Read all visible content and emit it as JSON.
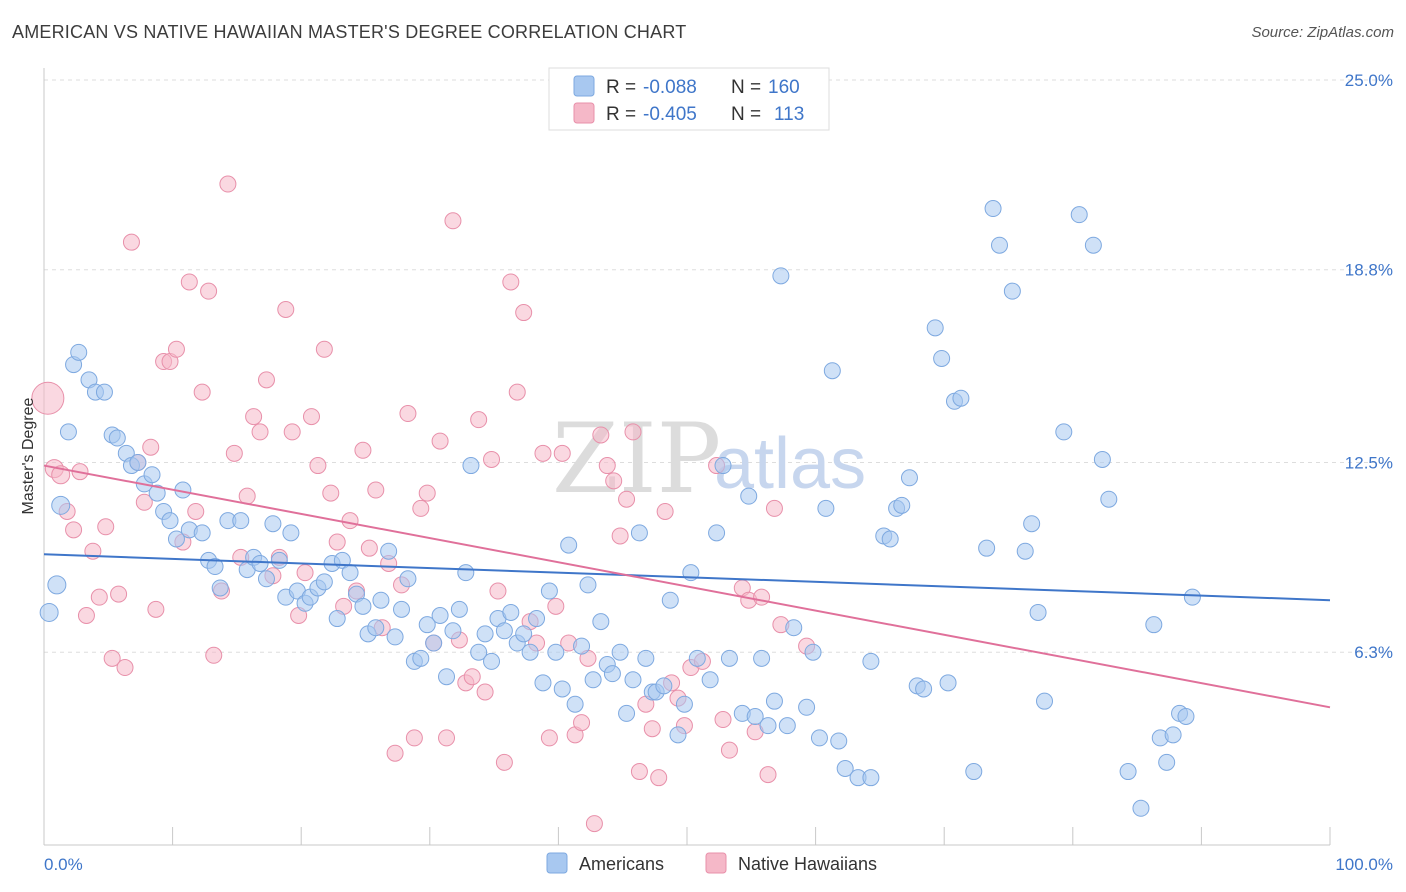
{
  "header": {
    "title": "AMERICAN VS NATIVE HAWAIIAN MASTER'S DEGREE CORRELATION CHART",
    "source": "Source: ZipAtlas.com"
  },
  "watermark": {
    "zip": "ZIP",
    "atlas": "atlas"
  },
  "legend": {
    "rows": [
      {
        "r_label": "R =",
        "r_value": "-0.088",
        "n_label": "N =",
        "n_value": "160",
        "color": "#a8c8f0"
      },
      {
        "r_label": "R =",
        "r_value": "-0.405",
        "n_label": "N =",
        "n_value": "113",
        "color": "#f5b8c8"
      }
    ]
  },
  "bottom_legend": {
    "items": [
      {
        "label": "Americans",
        "color": "#a8c8f0"
      },
      {
        "label": "Native Hawaiians",
        "color": "#f5b8c8"
      }
    ]
  },
  "chart_data": {
    "type": "scatter",
    "title": "AMERICAN VS NATIVE HAWAIIAN MASTER'S DEGREE CORRELATION CHART",
    "xlabel": "",
    "ylabel": "Master's Degree",
    "xlim": [
      0,
      100
    ],
    "ylim": [
      0,
      25
    ],
    "x_tick_labels": [
      "0.0%",
      "100.0%"
    ],
    "y_ticks": [
      6.3,
      12.5,
      18.8,
      25.0
    ],
    "y_tick_labels": [
      "6.3%",
      "12.5%",
      "18.8%",
      "25.0%"
    ],
    "grid": "horizontal dashed",
    "legend_position": "top-center",
    "colors": {
      "americans": "#3f76c9",
      "americans_fill": "#a8c8f0",
      "hawaiians": "#e0709a",
      "hawaiians_fill": "#f5b8c8"
    },
    "series": [
      {
        "name": "Americans",
        "trend": {
          "x": [
            0,
            100
          ],
          "y": [
            9.5,
            8.0
          ]
        },
        "points": [
          [
            0.4,
            7.6
          ],
          [
            1,
            8.5
          ],
          [
            1.3,
            11.1
          ],
          [
            1.9,
            13.5
          ],
          [
            2.3,
            15.7
          ],
          [
            2.7,
            16.1
          ],
          [
            3.5,
            15.2
          ],
          [
            4,
            14.8
          ],
          [
            4.7,
            14.8
          ],
          [
            5.3,
            13.4
          ],
          [
            5.7,
            13.3
          ],
          [
            6.4,
            12.8
          ],
          [
            6.8,
            12.4
          ],
          [
            7.3,
            12.5
          ],
          [
            7.8,
            11.8
          ],
          [
            8.4,
            12.1
          ],
          [
            8.8,
            11.5
          ],
          [
            9.3,
            10.9
          ],
          [
            9.8,
            10.6
          ],
          [
            10.3,
            10.0
          ],
          [
            10.8,
            11.6
          ],
          [
            11.3,
            10.3
          ],
          [
            12.3,
            10.2
          ],
          [
            12.8,
            9.3
          ],
          [
            13.3,
            9.1
          ],
          [
            13.7,
            8.4
          ],
          [
            14.3,
            10.6
          ],
          [
            15.3,
            10.6
          ],
          [
            15.8,
            9.0
          ],
          [
            16.3,
            9.4
          ],
          [
            16.8,
            9.2
          ],
          [
            17.3,
            8.7
          ],
          [
            17.8,
            10.5
          ],
          [
            18.3,
            9.3
          ],
          [
            18.8,
            8.1
          ],
          [
            19.2,
            10.2
          ],
          [
            19.7,
            8.3
          ],
          [
            20.3,
            7.9
          ],
          [
            20.7,
            8.1
          ],
          [
            21.3,
            8.4
          ],
          [
            21.8,
            8.6
          ],
          [
            22.4,
            9.2
          ],
          [
            22.8,
            7.4
          ],
          [
            23.2,
            9.3
          ],
          [
            23.8,
            8.9
          ],
          [
            24.3,
            8.2
          ],
          [
            24.8,
            7.8
          ],
          [
            25.2,
            6.9
          ],
          [
            25.8,
            7.1
          ],
          [
            26.2,
            8.0
          ],
          [
            26.8,
            9.6
          ],
          [
            27.3,
            6.8
          ],
          [
            27.8,
            7.7
          ],
          [
            28.3,
            8.7
          ],
          [
            28.8,
            6.0
          ],
          [
            29.3,
            6.1
          ],
          [
            29.8,
            7.2
          ],
          [
            30.3,
            6.6
          ],
          [
            30.8,
            7.5
          ],
          [
            31.3,
            5.5
          ],
          [
            31.8,
            7.0
          ],
          [
            32.3,
            7.7
          ],
          [
            32.8,
            8.9
          ],
          [
            33.2,
            12.4
          ],
          [
            33.8,
            6.3
          ],
          [
            34.3,
            6.9
          ],
          [
            34.8,
            6.0
          ],
          [
            35.3,
            7.4
          ],
          [
            35.8,
            7.0
          ],
          [
            36.3,
            7.6
          ],
          [
            36.8,
            6.6
          ],
          [
            37.3,
            6.9
          ],
          [
            37.8,
            6.3
          ],
          [
            38.3,
            7.4
          ],
          [
            38.8,
            5.3
          ],
          [
            39.3,
            8.3
          ],
          [
            39.8,
            6.3
          ],
          [
            40.3,
            5.1
          ],
          [
            40.8,
            9.8
          ],
          [
            41.3,
            4.6
          ],
          [
            41.8,
            6.5
          ],
          [
            42.3,
            8.5
          ],
          [
            42.7,
            5.4
          ],
          [
            43.3,
            7.3
          ],
          [
            43.8,
            5.9
          ],
          [
            44.2,
            5.6
          ],
          [
            44.8,
            6.3
          ],
          [
            45.3,
            4.3
          ],
          [
            45.8,
            5.4
          ],
          [
            46.3,
            10.2
          ],
          [
            46.8,
            6.1
          ],
          [
            47.3,
            5.0
          ],
          [
            47.6,
            5.0
          ],
          [
            48.2,
            5.2
          ],
          [
            48.7,
            8.0
          ],
          [
            49.3,
            3.6
          ],
          [
            49.8,
            4.6
          ],
          [
            50.3,
            8.9
          ],
          [
            50.8,
            6.1
          ],
          [
            51.8,
            5.4
          ],
          [
            52.3,
            10.2
          ],
          [
            52.8,
            12.4
          ],
          [
            53.3,
            6.1
          ],
          [
            54.3,
            4.3
          ],
          [
            54.8,
            11.4
          ],
          [
            55.3,
            4.2
          ],
          [
            55.8,
            6.1
          ],
          [
            56.3,
            3.9
          ],
          [
            56.8,
            4.7
          ],
          [
            57.3,
            18.6
          ],
          [
            57.8,
            3.9
          ],
          [
            58.3,
            7.1
          ],
          [
            59.3,
            4.5
          ],
          [
            59.8,
            6.3
          ],
          [
            60.3,
            3.5
          ],
          [
            60.8,
            11.0
          ],
          [
            61.3,
            15.5
          ],
          [
            61.8,
            3.4
          ],
          [
            62.3,
            2.5
          ],
          [
            63.3,
            2.2
          ],
          [
            64.3,
            6.0
          ],
          [
            64.3,
            2.2
          ],
          [
            65.3,
            10.1
          ],
          [
            65.8,
            10.0
          ],
          [
            66.3,
            11.0
          ],
          [
            66.7,
            11.1
          ],
          [
            67.3,
            12.0
          ],
          [
            67.9,
            5.2
          ],
          [
            68.4,
            5.1
          ],
          [
            69.3,
            16.9
          ],
          [
            69.8,
            15.9
          ],
          [
            70.3,
            5.3
          ],
          [
            70.8,
            14.5
          ],
          [
            71.3,
            14.6
          ],
          [
            72.3,
            2.4
          ],
          [
            73.3,
            9.7
          ],
          [
            73.8,
            20.8
          ],
          [
            74.3,
            19.6
          ],
          [
            75.3,
            18.1
          ],
          [
            76.3,
            9.6
          ],
          [
            76.8,
            10.5
          ],
          [
            77.3,
            7.6
          ],
          [
            77.8,
            4.7
          ],
          [
            79.3,
            13.5
          ],
          [
            80.5,
            20.6
          ],
          [
            81.6,
            19.6
          ],
          [
            82.3,
            12.6
          ],
          [
            82.8,
            11.3
          ],
          [
            84.3,
            2.4
          ],
          [
            85.3,
            1.2
          ],
          [
            86.3,
            7.2
          ],
          [
            86.8,
            3.5
          ],
          [
            87.3,
            2.7
          ],
          [
            87.8,
            3.6
          ],
          [
            88.3,
            4.3
          ],
          [
            88.8,
            4.2
          ],
          [
            89.3,
            8.1
          ]
        ]
      },
      {
        "name": "Native Hawaiians",
        "trend": {
          "x": [
            0,
            100
          ],
          "y": [
            12.4,
            4.5
          ]
        },
        "points": [
          [
            0.3,
            14.6
          ],
          [
            0.8,
            12.3
          ],
          [
            1.3,
            12.1
          ],
          [
            1.8,
            10.9
          ],
          [
            2.3,
            10.3
          ],
          [
            2.8,
            12.2
          ],
          [
            3.3,
            7.5
          ],
          [
            3.8,
            9.6
          ],
          [
            4.3,
            8.1
          ],
          [
            4.8,
            10.4
          ],
          [
            5.3,
            6.1
          ],
          [
            5.8,
            8.2
          ],
          [
            6.3,
            5.8
          ],
          [
            6.8,
            19.7
          ],
          [
            7.3,
            12.5
          ],
          [
            7.8,
            11.2
          ],
          [
            8.3,
            13.0
          ],
          [
            8.7,
            7.7
          ],
          [
            9.3,
            15.8
          ],
          [
            9.8,
            15.8
          ],
          [
            10.3,
            16.2
          ],
          [
            10.8,
            9.9
          ],
          [
            11.3,
            18.4
          ],
          [
            11.8,
            10.9
          ],
          [
            12.3,
            14.8
          ],
          [
            12.8,
            18.1
          ],
          [
            13.2,
            6.2
          ],
          [
            13.8,
            8.3
          ],
          [
            14.3,
            21.6
          ],
          [
            14.8,
            12.8
          ],
          [
            15.3,
            9.4
          ],
          [
            15.8,
            11.4
          ],
          [
            16.3,
            14.0
          ],
          [
            16.8,
            13.5
          ],
          [
            17.3,
            15.2
          ],
          [
            17.8,
            8.8
          ],
          [
            18.3,
            9.4
          ],
          [
            18.8,
            17.5
          ],
          [
            19.3,
            13.5
          ],
          [
            19.8,
            7.5
          ],
          [
            20.3,
            8.9
          ],
          [
            20.8,
            14.0
          ],
          [
            21.3,
            12.4
          ],
          [
            21.8,
            16.2
          ],
          [
            22.3,
            11.5
          ],
          [
            22.8,
            9.9
          ],
          [
            23.3,
            7.8
          ],
          [
            23.8,
            10.6
          ],
          [
            24.3,
            8.3
          ],
          [
            24.8,
            12.9
          ],
          [
            25.3,
            9.7
          ],
          [
            25.8,
            11.6
          ],
          [
            26.3,
            7.1
          ],
          [
            26.8,
            9.2
          ],
          [
            27.3,
            3.0
          ],
          [
            27.8,
            8.5
          ],
          [
            28.3,
            14.1
          ],
          [
            28.8,
            3.5
          ],
          [
            29.3,
            11.0
          ],
          [
            29.8,
            11.5
          ],
          [
            30.3,
            6.6
          ],
          [
            30.8,
            13.2
          ],
          [
            31.3,
            3.5
          ],
          [
            31.8,
            20.4
          ],
          [
            32.3,
            6.7
          ],
          [
            32.8,
            5.3
          ],
          [
            33.3,
            5.5
          ],
          [
            33.8,
            13.9
          ],
          [
            34.3,
            5.0
          ],
          [
            34.8,
            12.6
          ],
          [
            35.3,
            8.3
          ],
          [
            35.8,
            2.7
          ],
          [
            36.3,
            18.4
          ],
          [
            36.8,
            14.8
          ],
          [
            37.3,
            17.4
          ],
          [
            37.8,
            7.3
          ],
          [
            38.3,
            6.6
          ],
          [
            38.8,
            12.8
          ],
          [
            39.3,
            3.5
          ],
          [
            39.8,
            7.8
          ],
          [
            40.3,
            12.8
          ],
          [
            40.8,
            6.6
          ],
          [
            41.3,
            3.6
          ],
          [
            41.8,
            4.0
          ],
          [
            42.3,
            6.1
          ],
          [
            42.8,
            0.7
          ],
          [
            43.3,
            13.4
          ],
          [
            43.8,
            12.4
          ],
          [
            44.3,
            11.9
          ],
          [
            44.8,
            10.1
          ],
          [
            45.3,
            11.3
          ],
          [
            45.8,
            13.5
          ],
          [
            46.3,
            2.4
          ],
          [
            46.8,
            4.6
          ],
          [
            47.3,
            3.8
          ],
          [
            47.8,
            2.2
          ],
          [
            48.3,
            10.9
          ],
          [
            48.8,
            5.3
          ],
          [
            49.3,
            4.8
          ],
          [
            49.8,
            3.9
          ],
          [
            50.3,
            5.8
          ],
          [
            51.2,
            6.0
          ],
          [
            52.3,
            12.4
          ],
          [
            52.8,
            4.1
          ],
          [
            53.3,
            3.1
          ],
          [
            54.3,
            8.4
          ],
          [
            54.8,
            8.0
          ],
          [
            55.3,
            3.7
          ],
          [
            55.8,
            8.1
          ],
          [
            56.3,
            2.3
          ],
          [
            56.8,
            11.0
          ],
          [
            57.3,
            7.2
          ],
          [
            59.3,
            6.5
          ]
        ]
      }
    ]
  }
}
